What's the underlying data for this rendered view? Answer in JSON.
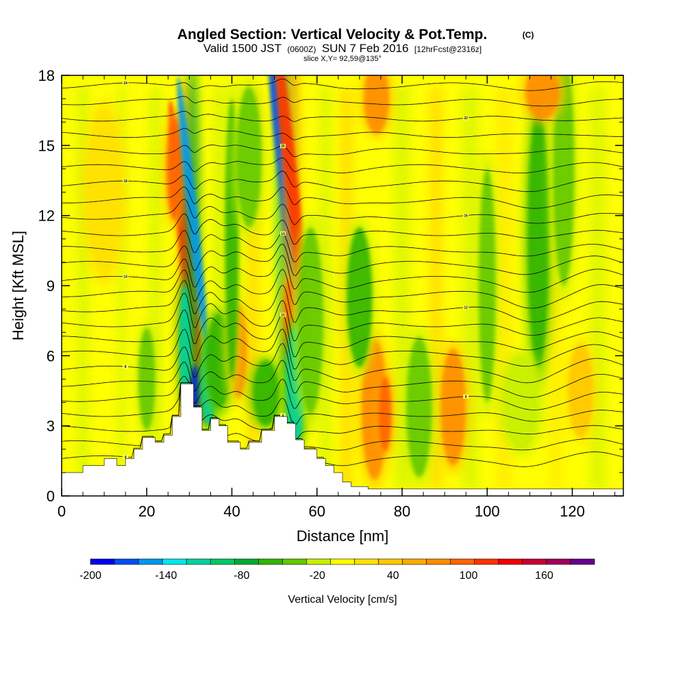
{
  "chart_data": {
    "type": "heatmap",
    "title": "Angled Section: Vertical Velocity & Pot.Temp.",
    "title_suffix": "(C)",
    "subtitle_parts": [
      "Valid 1500 JST",
      "(0600Z)",
      "SUN 7 Feb 2016",
      "[12hrFcst@2316z]"
    ],
    "slice_label": "slice X,Y= 92,59@135°",
    "xlabel": "Distance [nm]",
    "ylabel": "Height [Kft MSL]",
    "xlim": [
      0,
      132
    ],
    "ylim": [
      0,
      18
    ],
    "x_ticks": [
      0,
      20,
      40,
      60,
      80,
      100,
      120
    ],
    "y_ticks": [
      0,
      3,
      6,
      9,
      12,
      15,
      18
    ],
    "colorbar": {
      "label": "Vertical Velocity [cm/s]",
      "tick_labels": [
        "-200",
        "-140",
        "-80",
        "-20",
        "40",
        "100",
        "160"
      ],
      "tick_values": [
        -200,
        -140,
        -80,
        -20,
        40,
        100,
        160
      ],
      "range": [
        -200,
        200
      ],
      "colors": [
        "#0000f0",
        "#0050f0",
        "#0096f0",
        "#00e6f0",
        "#00d2a0",
        "#00c864",
        "#00aa32",
        "#32b400",
        "#64c800",
        "#c8f000",
        "#ffff00",
        "#ffe100",
        "#ffc800",
        "#ffaa00",
        "#ff8c00",
        "#ff6400",
        "#ff3200",
        "#f00000",
        "#c80032",
        "#a0005a",
        "#64008c"
      ]
    },
    "terrain_height_kft": [
      {
        "x": 0,
        "h": 1.0
      },
      {
        "x": 5,
        "h": 1.3
      },
      {
        "x": 10,
        "h": 1.6
      },
      {
        "x": 13,
        "h": 1.3
      },
      {
        "x": 15,
        "h": 1.6
      },
      {
        "x": 17,
        "h": 2.0
      },
      {
        "x": 19,
        "h": 2.5
      },
      {
        "x": 22,
        "h": 2.3
      },
      {
        "x": 24,
        "h": 2.6
      },
      {
        "x": 26,
        "h": 3.4
      },
      {
        "x": 28,
        "h": 4.8
      },
      {
        "x": 31,
        "h": 3.8
      },
      {
        "x": 33,
        "h": 2.8
      },
      {
        "x": 35,
        "h": 3.3
      },
      {
        "x": 37,
        "h": 3.0
      },
      {
        "x": 39,
        "h": 2.3
      },
      {
        "x": 42,
        "h": 2.0
      },
      {
        "x": 44,
        "h": 2.3
      },
      {
        "x": 47,
        "h": 2.8
      },
      {
        "x": 50,
        "h": 3.4
      },
      {
        "x": 53,
        "h": 3.1
      },
      {
        "x": 55,
        "h": 2.4
      },
      {
        "x": 57,
        "h": 2.0
      },
      {
        "x": 60,
        "h": 1.6
      },
      {
        "x": 62,
        "h": 1.3
      },
      {
        "x": 64,
        "h": 1.0
      },
      {
        "x": 66,
        "h": 0.6
      },
      {
        "x": 68,
        "h": 0.4
      },
      {
        "x": 72,
        "h": 0.3
      },
      {
        "x": 132,
        "h": 0.3
      }
    ],
    "velocity_features": [
      {
        "x": 29.5,
        "y": 10.0,
        "w": 1.6,
        "h": 7.0,
        "v": 120
      },
      {
        "x": 26.5,
        "y": 14.0,
        "w": 1.8,
        "h": 2.2,
        "v": 100
      },
      {
        "x": 30.8,
        "y": 12.0,
        "w": 1.2,
        "h": 6.0,
        "v": -150
      },
      {
        "x": 29.0,
        "y": 6.5,
        "w": 1.4,
        "h": 2.5,
        "v": -120
      },
      {
        "x": 31.5,
        "y": 4.6,
        "w": 1.2,
        "h": 1.0,
        "v": -190
      },
      {
        "x": 34.5,
        "y": 4.8,
        "w": 1.8,
        "h": 1.8,
        "v": -120
      },
      {
        "x": 37.0,
        "y": 5.8,
        "w": 3.0,
        "h": 2.0,
        "v": -60
      },
      {
        "x": 41.5,
        "y": 6.2,
        "w": 2.0,
        "h": 2.0,
        "v": 80
      },
      {
        "x": 40.0,
        "y": 11.0,
        "w": 1.6,
        "h": 6.0,
        "v": -50
      },
      {
        "x": 52.5,
        "y": 13.0,
        "w": 1.4,
        "h": 7.0,
        "v": -170
      },
      {
        "x": 54.0,
        "y": 13.5,
        "w": 1.5,
        "h": 7.0,
        "v": 110
      },
      {
        "x": 53.5,
        "y": 7.5,
        "w": 1.2,
        "h": 1.8,
        "v": 100
      },
      {
        "x": 55.0,
        "y": 4.8,
        "w": 2.4,
        "h": 2.5,
        "v": -110
      },
      {
        "x": 48.0,
        "y": 4.4,
        "w": 3.0,
        "h": 1.4,
        "v": -60
      },
      {
        "x": 58.5,
        "y": 7.5,
        "w": 3.0,
        "h": 4.0,
        "v": -30
      },
      {
        "x": 73.5,
        "y": 3.7,
        "w": 3.0,
        "h": 3.0,
        "v": 70
      },
      {
        "x": 76.0,
        "y": 3.5,
        "w": 1.5,
        "h": 1.6,
        "v": 90
      },
      {
        "x": 92.0,
        "y": 3.8,
        "w": 3.0,
        "h": 2.5,
        "v": 75
      },
      {
        "x": 84.0,
        "y": 3.8,
        "w": 3.0,
        "h": 3.0,
        "v": -40
      },
      {
        "x": 70.0,
        "y": 8.5,
        "w": 3.0,
        "h": 3.0,
        "v": -50
      },
      {
        "x": 100.0,
        "y": 9.0,
        "w": 2.0,
        "h": 5.0,
        "v": -30
      },
      {
        "x": 112.0,
        "y": 11.0,
        "w": 2.5,
        "h": 5.5,
        "v": -55
      },
      {
        "x": 118.0,
        "y": 14.0,
        "w": 2.5,
        "h": 5.0,
        "v": -30
      },
      {
        "x": 74.0,
        "y": 17.0,
        "w": 3.0,
        "h": 1.5,
        "v": 70
      },
      {
        "x": 113.0,
        "y": 17.3,
        "w": 4.0,
        "h": 1.2,
        "v": 80
      },
      {
        "x": 10.0,
        "y": 13.0,
        "w": 4.0,
        "h": 3.5,
        "v": 25
      },
      {
        "x": 20.0,
        "y": 5.0,
        "w": 2.0,
        "h": 2.2,
        "v": -40
      },
      {
        "x": 44.0,
        "y": 14.5,
        "w": 3.0,
        "h": 3.0,
        "v": -40
      },
      {
        "x": 122.0,
        "y": 4.5,
        "w": 3.0,
        "h": 2.0,
        "v": 40
      },
      {
        "x": 108.0,
        "y": 4.0,
        "w": 4.0,
        "h": 2.0,
        "v": -25
      }
    ],
    "theta_contour_labels": [
      "4",
      "6",
      "8",
      "10",
      "12",
      "14",
      "16",
      "18",
      "20",
      "22",
      "24"
    ]
  }
}
